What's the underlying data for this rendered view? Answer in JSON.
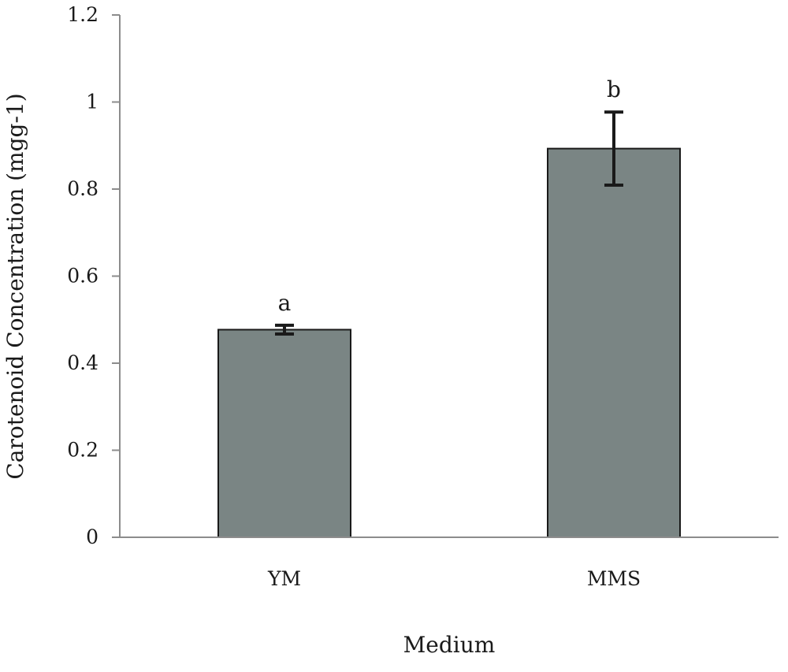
{
  "chart_data": {
    "type": "bar",
    "title": "",
    "xlabel": "Medium",
    "ylabel": "Carotenoid Concentration (mgg-1)",
    "categories": [
      "YM",
      "MMS"
    ],
    "values": [
      0.477,
      0.893
    ],
    "error": [
      0.01,
      0.084
    ],
    "significance_labels": [
      "a",
      "b"
    ],
    "ylim": [
      0,
      1.2
    ],
    "yticks": [
      0,
      0.2,
      0.4,
      0.6,
      0.8,
      1,
      1.2
    ],
    "ytick_labels": [
      "0",
      "0.2",
      "0.4",
      "0.6",
      "0.8",
      "1",
      "1.2"
    ],
    "grid": false,
    "legend": "none",
    "colors": {
      "bar_fill": "#7a8584",
      "bar_stroke": "#1a1a1a",
      "axis": "#8c8c8c"
    }
  }
}
